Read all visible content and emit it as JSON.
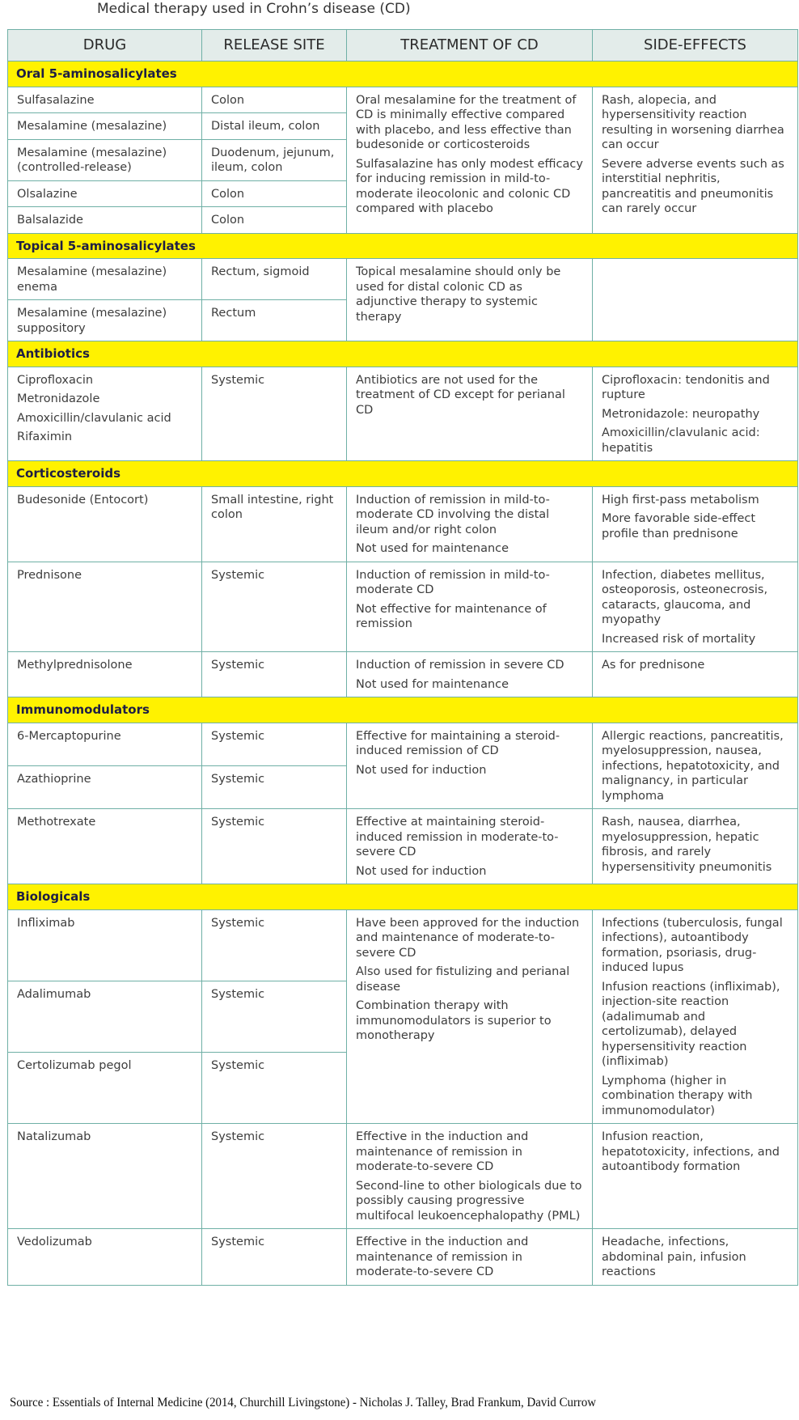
{
  "title": "Medical therapy used in Crohn’s disease (CD)",
  "headers": [
    "DRUG",
    "RELEASE SITE",
    "TREATMENT OF CD",
    "SIDE-EFFECTS"
  ],
  "sections": [
    {
      "name": "Oral 5-aminosalicylates",
      "groups": [
        {
          "drugs": [
            {
              "name": [
                "Sulfasalazine"
              ],
              "site": "Colon"
            },
            {
              "name": [
                "Mesalamine (mesalazine)"
              ],
              "site": "Distal ileum, colon"
            },
            {
              "name": [
                "Mesalamine (mesalazine) (controlled-release)"
              ],
              "site": "Duodenum, jejunum, ileum, colon"
            },
            {
              "name": [
                "Olsalazine"
              ],
              "site": "Colon"
            },
            {
              "name": [
                "Balsalazide"
              ],
              "site": "Colon"
            }
          ],
          "treatment": [
            "Oral mesalamine for the treatment of CD is minimally effective compared with placebo, and less effective than budesonide or corticosteroids",
            "Sulfasalazine has only modest efficacy for inducing remission in mild-to-moderate ileocolonic and colonic CD compared with placebo"
          ],
          "side_effects": [
            "Rash, alopecia, and hypersensitivity reaction resulting in worsening diarrhea can occur",
            "Severe adverse events such as interstitial nephritis, pancreatitis and pneumonitis can rarely occur"
          ]
        }
      ]
    },
    {
      "name": "Topical 5-aminosalicylates",
      "groups": [
        {
          "drugs": [
            {
              "name": [
                "Mesalamine (mesalazine) enema"
              ],
              "site": "Rectum, sigmoid"
            },
            {
              "name": [
                "Mesalamine (mesalazine) suppository"
              ],
              "site": "Rectum"
            }
          ],
          "treatment": [
            "Topical mesalamine should only be used for distal colonic CD as adjunctive therapy to systemic therapy"
          ],
          "side_effects": []
        }
      ]
    },
    {
      "name": "Antibiotics",
      "groups": [
        {
          "drugs": [
            {
              "name": [
                "Ciprofloxacin",
                "Metronidazole",
                "Amoxicillin/clavulanic acid",
                "Rifaximin"
              ],
              "site": "Systemic"
            }
          ],
          "treatment": [
            "Antibiotics are not used for the treatment of CD except for perianal CD"
          ],
          "side_effects": [
            "Ciprofloxacin: tendonitis and rupture",
            "Metronidazole: neuropathy",
            "Amoxicillin/clavulanic acid: hepatitis"
          ]
        }
      ]
    },
    {
      "name": "Corticosteroids",
      "groups": [
        {
          "drugs": [
            {
              "name": [
                "Budesonide (Entocort)"
              ],
              "site": "Small intestine, right colon"
            }
          ],
          "treatment": [
            "Induction of remission in mild-to-moderate CD involving the distal ileum and/or right colon",
            "Not used for maintenance"
          ],
          "side_effects": [
            "High first-pass metabolism",
            "More favorable side-effect profile than prednisone"
          ]
        },
        {
          "drugs": [
            {
              "name": [
                "Prednisone"
              ],
              "site": "Systemic"
            }
          ],
          "treatment": [
            "Induction of remission in mild-to-moderate CD",
            "Not effective for maintenance of remission"
          ],
          "side_effects": [
            "Infection, diabetes mellitus, osteoporosis, osteonecrosis, cataracts, glaucoma, and myopathy",
            "Increased risk of mortality"
          ]
        },
        {
          "drugs": [
            {
              "name": [
                "Methylprednisolone"
              ],
              "site": "Systemic"
            }
          ],
          "treatment": [
            "Induction of remission in severe CD",
            "Not used for maintenance"
          ],
          "side_effects": [
            "As for prednisone"
          ]
        }
      ]
    },
    {
      "name": "Immunomodulators",
      "groups": [
        {
          "drugs": [
            {
              "name": [
                "6-Mercaptopurine"
              ],
              "site": "Systemic"
            },
            {
              "name": [
                "Azathioprine"
              ],
              "site": "Systemic"
            }
          ],
          "treatment": [
            "Effective for maintaining a steroid-induced remission of CD",
            "Not used for induction"
          ],
          "side_effects": [
            "Allergic reactions, pancreatitis, myelosuppression, nausea, infections, hepatotoxicity, and malignancy, in particular lymphoma"
          ]
        },
        {
          "drugs": [
            {
              "name": [
                "Methotrexate"
              ],
              "site": "Systemic"
            }
          ],
          "treatment": [
            "Effective at maintaining steroid-induced remission in moderate-to-severe CD",
            "Not used for induction"
          ],
          "side_effects": [
            "Rash, nausea, diarrhea, myelosuppression, hepatic fibrosis, and rarely hypersensitivity pneumonitis"
          ]
        }
      ]
    },
    {
      "name": "Biologicals",
      "groups": [
        {
          "drugs": [
            {
              "name": [
                "Infliximab"
              ],
              "site": "Systemic"
            },
            {
              "name": [
                "Adalimumab"
              ],
              "site": "Systemic"
            },
            {
              "name": [
                "Certolizumab pegol"
              ],
              "site": "Systemic"
            }
          ],
          "treatment": [
            "Have been approved for the induction and maintenance of moderate-to-severe CD",
            "Also used for fistulizing and perianal disease",
            "Combination therapy with immunomodulators is superior to monotherapy"
          ],
          "side_effects": [
            "Infections (tuberculosis, fungal infections), autoantibody formation, psoriasis, drug-induced lupus",
            "Infusion reactions (infliximab), injection-site reaction (adalimumab and certolizumab), delayed hypersensitivity reaction (infliximab)",
            "Lymphoma (higher in combination therapy with immunomodulator)"
          ]
        },
        {
          "drugs": [
            {
              "name": [
                "Natalizumab"
              ],
              "site": "Systemic"
            }
          ],
          "treatment": [
            "Effective in the induction and maintenance of remission in moderate-to-severe CD",
            "Second-line to other biologicals due to possibly causing progressive multifocal leukoencephalopathy (PML)"
          ],
          "side_effects": [
            "Infusion reaction, hepatotoxicity, infections, and autoantibody formation"
          ]
        },
        {
          "drugs": [
            {
              "name": [
                "Vedolizumab"
              ],
              "site": "Systemic"
            }
          ],
          "treatment": [
            "Effective in the induction and maintenance of remission in moderate-to-severe CD"
          ],
          "side_effects": [
            "Headache, infections, abdominal pain, infusion reactions"
          ]
        }
      ]
    }
  ],
  "source": "Source : Essentials of Internal Medicine (2014, Churchill Livingstone) - Nicholas J. Talley, Brad Frankum, David Currow",
  "colors": {
    "header_bg": "#e3ecea",
    "section_bg": "#fff200",
    "border": "#6fb0a6"
  }
}
